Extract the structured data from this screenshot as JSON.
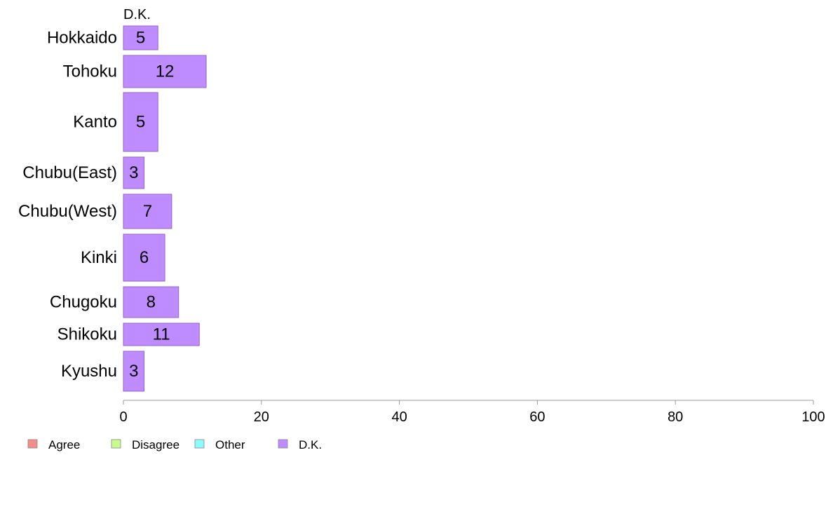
{
  "chart_data": {
    "type": "bar",
    "orientation": "horizontal",
    "stacked": true,
    "title": "",
    "panel_label": "D.K.",
    "categories": [
      "Hokkaido",
      "Tohoku",
      "Kanto",
      "Chubu(East)",
      "Chubu(West)",
      "Kinki",
      "Chugoku",
      "Shikoku",
      "Kyushu"
    ],
    "series": [
      {
        "name": "D.K.",
        "color": "#bf8cff",
        "values": [
          5,
          12,
          5,
          3,
          7,
          6,
          8,
          11,
          3
        ],
        "labels": [
          "5",
          "12",
          "5",
          "3",
          "7",
          "6",
          "8",
          "11",
          "3"
        ]
      }
    ],
    "xlim": [
      0,
      100
    ],
    "xticks": [
      "0",
      "20",
      "40",
      "60",
      "80",
      "100"
    ],
    "xlabel": "",
    "ylabel": "",
    "grid": false,
    "legend": {
      "placement": "bottom-left",
      "entries": [
        {
          "name": "Agree",
          "color": "#f68d8b"
        },
        {
          "name": "Disagree",
          "color": "#c8fb8d"
        },
        {
          "name": "Other",
          "color": "#8cfbfb"
        },
        {
          "name": "D.K.",
          "color": "#bf8cff"
        }
      ]
    }
  }
}
